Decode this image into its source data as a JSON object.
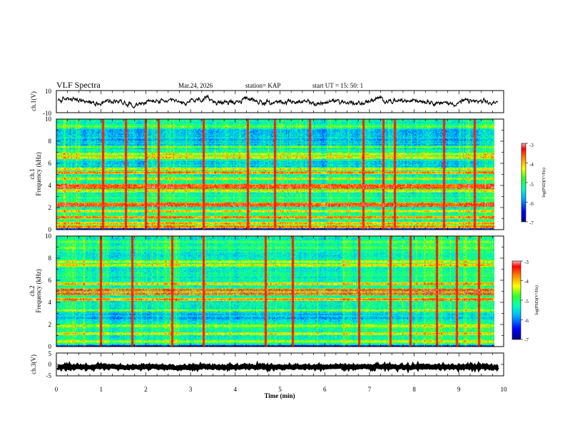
{
  "header": {
    "title": "VLF Spectra",
    "date": "Mar.24, 2026",
    "station": "station= KAP",
    "start": "start  UT =   15: 50: 1"
  },
  "chart_data": [
    {
      "type": "line",
      "name": "ch1-waveform",
      "ylabel": "ch.1(V)",
      "ylim": [
        -10,
        10
      ],
      "yticks": [
        "10",
        "-10"
      ],
      "xlim": [
        0,
        10
      ],
      "x_extent_min": 9.83,
      "baseline": 0,
      "amplitude": 3.5
    },
    {
      "type": "heatmap",
      "name": "ch1-spectrogram",
      "ylabel_line1": "ch.1",
      "ylabel_line2": "Frequency (kHz)",
      "ylim": [
        0,
        10
      ],
      "yticks": [
        "0",
        "2",
        "4",
        "6",
        "8",
        "10"
      ],
      "xlim": [
        0,
        10
      ],
      "x_extent_min": 9.83,
      "colorbar": {
        "label": "log(PSD)(V²/Hz)",
        "range": [
          -7,
          -3
        ],
        "ticks": [
          "-3",
          "-4",
          "-5",
          "-6",
          "-7"
        ]
      },
      "bands_khz": [
        {
          "f": 0.3,
          "level": 0.85
        },
        {
          "f": 0.6,
          "level": 0.8
        },
        {
          "f": 1.15,
          "level": 0.85
        },
        {
          "f": 1.7,
          "level": 0.75
        },
        {
          "f": 2.2,
          "level": 0.92
        },
        {
          "f": 2.35,
          "level": 0.9
        },
        {
          "f": 2.9,
          "level": 0.55
        },
        {
          "f": 3.5,
          "level": 0.7
        },
        {
          "f": 3.85,
          "level": 0.95
        },
        {
          "f": 4.05,
          "level": 0.9
        },
        {
          "f": 4.65,
          "level": 0.7
        },
        {
          "f": 5.2,
          "level": 0.85
        },
        {
          "f": 5.5,
          "level": 0.7
        },
        {
          "f": 6.55,
          "level": 0.75
        },
        {
          "f": 6.85,
          "level": 0.72
        },
        {
          "f": 7.5,
          "level": 0.6
        },
        {
          "f": 9.35,
          "level": 0.6
        }
      ],
      "spikes_min": [
        1.05,
        1.55,
        2.0,
        2.3,
        3.3,
        4.3,
        4.9,
        5.7,
        6.9,
        7.35,
        7.6,
        8.7,
        9.4
      ]
    },
    {
      "type": "heatmap",
      "name": "ch2-spectrogram",
      "ylabel_line1": "ch.2",
      "ylabel_line2": "Frequency (kHz)",
      "ylim": [
        0,
        10
      ],
      "yticks": [
        "0",
        "2",
        "4",
        "6",
        "8",
        "10"
      ],
      "xlim": [
        0,
        10
      ],
      "x_extent_min": 9.83,
      "colorbar": {
        "label": "log(PSD)(V²/Hz)",
        "range": [
          -7,
          -3
        ],
        "ticks": [
          "-3",
          "-4",
          "-5",
          "-6",
          "-7"
        ]
      },
      "bands_khz": [
        {
          "f": 0.5,
          "level": 0.7
        },
        {
          "f": 1.2,
          "level": 0.75
        },
        {
          "f": 1.9,
          "level": 0.7
        },
        {
          "f": 3.3,
          "level": 0.65
        },
        {
          "f": 4.3,
          "level": 0.85
        },
        {
          "f": 4.8,
          "level": 0.9
        },
        {
          "f": 5.15,
          "level": 0.92
        },
        {
          "f": 5.7,
          "level": 0.8
        },
        {
          "f": 7.4,
          "level": 0.75
        },
        {
          "f": 7.7,
          "level": 0.72
        },
        {
          "f": 8.95,
          "level": 0.6
        },
        {
          "f": 9.5,
          "level": 0.6
        }
      ],
      "spikes_min": [
        1.0,
        1.7,
        2.6,
        3.3,
        4.7,
        5.3,
        6.8,
        7.5,
        7.95,
        8.55,
        9.0,
        9.5
      ]
    },
    {
      "type": "line",
      "name": "ch3-waveform",
      "ylabel": "ch.3(V)",
      "ylim": [
        -5,
        5
      ],
      "yticks": [
        "5",
        "0",
        "-5"
      ],
      "xlim": [
        0,
        10
      ],
      "x_extent_min": 9.83,
      "baseline": -1.1,
      "amplitude": 0.15
    }
  ],
  "xaxis": {
    "label": "Time (min)",
    "ticks": [
      "0",
      "1",
      "2",
      "3",
      "4",
      "5",
      "6",
      "7",
      "8",
      "9",
      "10"
    ]
  }
}
